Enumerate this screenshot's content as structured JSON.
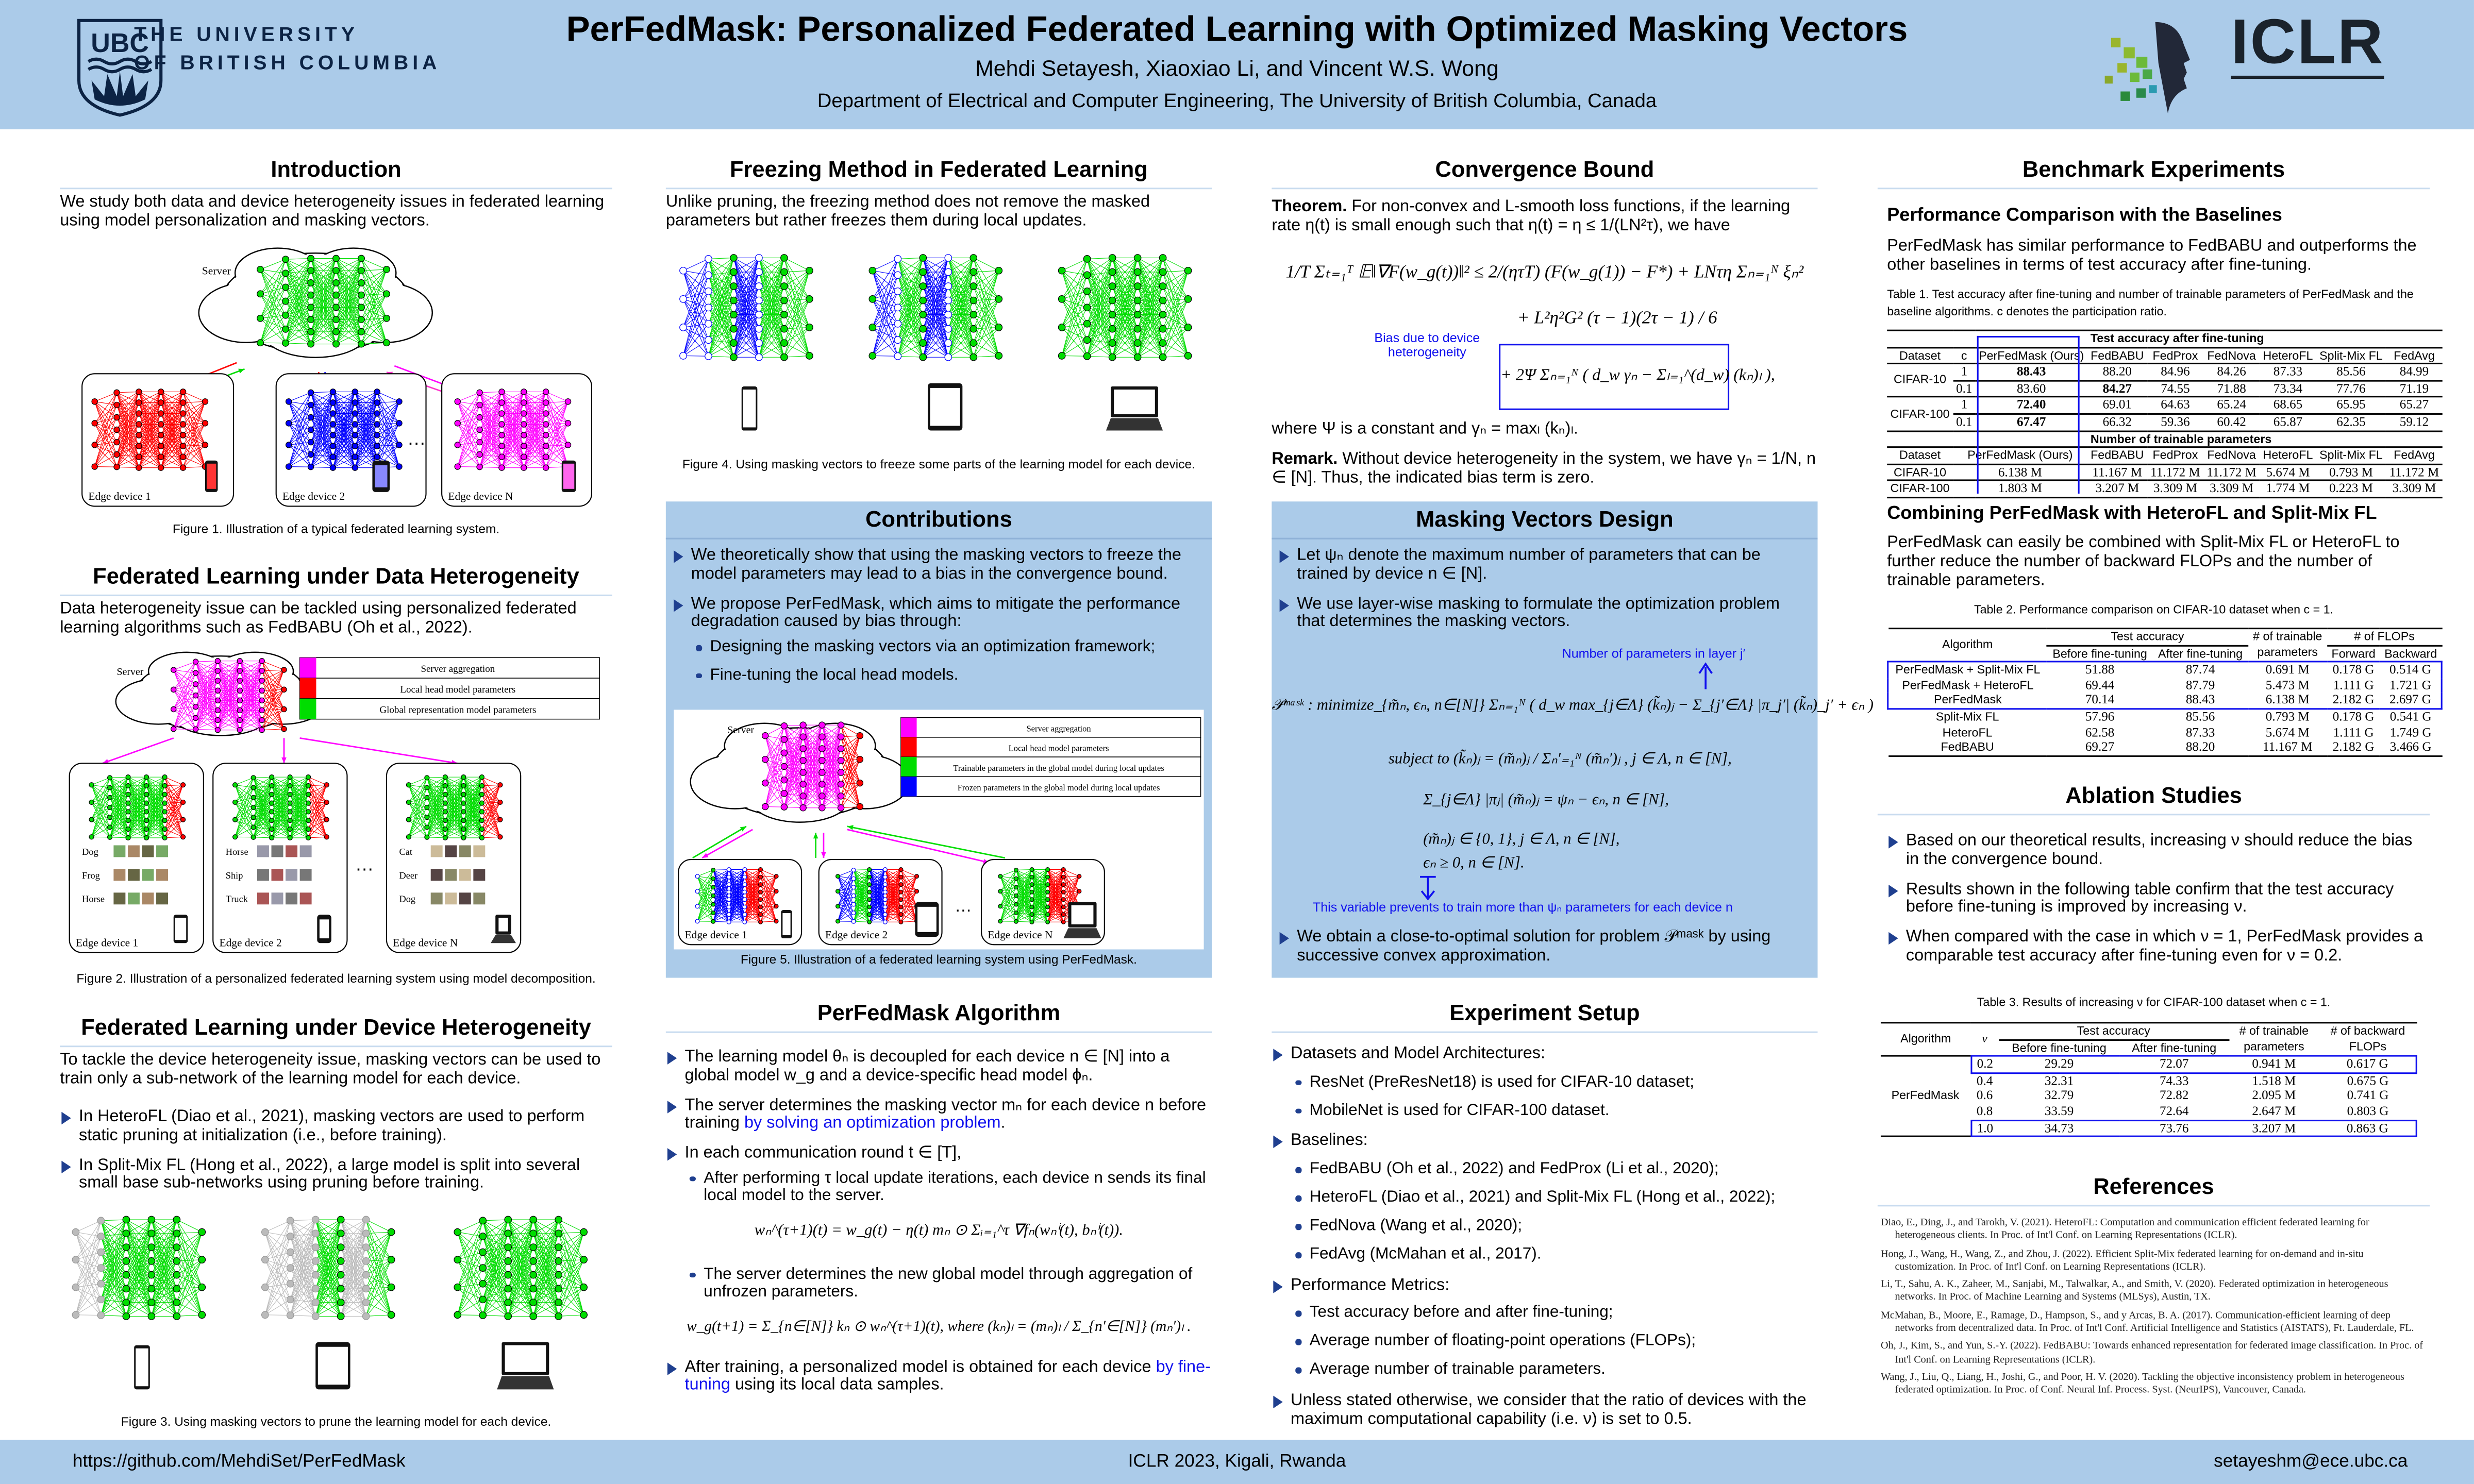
{
  "header": {
    "title": "PerFedMask: Personalized Federated Learning with Optimized Masking Vectors",
    "authors": "Mehdi Setayesh, Xiaoxiao Li, and Vincent W.S. Wong",
    "affiliation": "Department of Electrical and Computer Engineering, The University of British Columbia, Canada",
    "ubc_logo": {
      "crest_text": "UBC",
      "line1": "THE UNIVERSITY",
      "line2": "OF BRITISH COLUMBIA"
    },
    "iclr_logo": {
      "text": "ICLR"
    }
  },
  "footer": {
    "github": "https://github.com/MehdiSet/PerFedMask",
    "venue": "ICLR 2023, Kigali, Rwanda",
    "email": "setayeshm@ece.ubc.ca"
  },
  "colors": {
    "header_bg": "#abcbe9",
    "accent_blue": "#1010ee",
    "server_magenta": "#ff00ff",
    "head_red": "#ff0000",
    "trainable_green": "#00dd00",
    "frozen_blue": "#0000ff"
  },
  "intro": {
    "title": "Introduction",
    "text": "We study both data and device heterogeneity issues in federated learning using model personalization and masking vectors.",
    "fig": {
      "server": "Server",
      "dev1": "Edge device 1",
      "dev2": "Edge device 2",
      "devN": "Edge device N",
      "dots": "…"
    },
    "caption": "Figure 1. Illustration of a typical federated learning system."
  },
  "data_het": {
    "title": "Federated Learning under Data Heterogeneity",
    "text": "Data heterogeneity issue can be tackled using personalized federated learning algorithms such as FedBABU (Oh et al., 2022).",
    "legend": [
      "Server aggregation",
      "Local head model parameters",
      "Global representation model parameters"
    ],
    "fig": {
      "server": "Server",
      "dev1": "Edge device 1",
      "dev2": "Edge device 2",
      "devN": "Edge device N",
      "dots": "…",
      "classes": [
        [
          "Dog",
          "Frog",
          "Horse"
        ],
        [
          "Horse",
          "Ship",
          "Truck"
        ],
        [
          "Cat",
          "Deer",
          "Dog"
        ]
      ]
    },
    "caption": "Figure 2. Illustration of a personalized federated learning system using model decomposition."
  },
  "device_het": {
    "title": "Federated Learning under Device Heterogeneity",
    "text": "To tackle the device heterogeneity issue, masking vectors can be used to train only a sub-network of the learning model for each device.",
    "bullets": [
      "In HeteroFL (Diao et al., 2021), masking vectors are used to perform static pruning at initialization (i.e., before training).",
      "In Split-Mix FL (Hong et al., 2022), a large model is split into several small base sub-networks using pruning before training."
    ],
    "caption": "Figure 3. Using masking vectors to prune the learning model for each device."
  },
  "freezing": {
    "title": "Freezing Method in Federated Learning",
    "text": "Unlike pruning, the freezing method does not remove the masked parameters but rather freezes them during local updates.",
    "caption": "Figure 4. Using masking vectors to freeze some parts of the learning model for each device."
  },
  "contributions": {
    "title": "Contributions",
    "bullets": [
      "We theoretically show that using the masking vectors to freeze the model parameters may lead to a bias in the convergence bound.",
      "We propose PerFedMask, which aims to mitigate the performance degradation caused by bias through:"
    ],
    "sub_bullets": [
      "Designing the masking vectors via an optimization framework;",
      "Fine-tuning the local head models."
    ],
    "legend": [
      "Server aggregation",
      "Local head model parameters",
      "Trainable parameters in the global model during local updates",
      "Frozen parameters in the global model during local updates"
    ],
    "fig": {
      "server": "Server",
      "dev1": "Edge device 1",
      "dev2": "Edge device 2",
      "devN": "Edge device N",
      "dots": "…"
    },
    "caption": "Figure 5. Illustration of a federated learning system using PerFedMask."
  },
  "algorithm": {
    "title": "PerFedMask Algorithm",
    "b1": "The learning model θₙ is decoupled for each device n ∈ [N] into a global model w_g and a device-specific head model ϕₙ.",
    "b2_pre": "The server determines the masking vector mₙ for each device n before training ",
    "b2_link": "by solving an optimization problem",
    "b2_post": ".",
    "b3": "In each communication round t ∈ [T],",
    "s1": "After performing τ local update iterations, each device n sends its final local model to the server.",
    "eq1": "wₙ^(τ+1)(t) = w_g(t) − η(t) mₙ ⊙ Σᵢ₌₁^τ ∇fₙ(wₙⁱ(t), bₙⁱ(t)).",
    "s2": "The server determines the new global model through aggregation of unfrozen parameters.",
    "eq2": "w_g(t+1) = Σ_{n∈[N]} kₙ ⊙ wₙ^(τ+1)(t),  where  (kₙ)ₗ = (mₙ)ₗ / Σ_{n′∈[N]} (mₙ′)ₗ .",
    "b4_pre": "After training, a personalized model is obtained for each device ",
    "b4_link": "by fine-tuning",
    "b4_post": " using its local data samples."
  },
  "convergence": {
    "title": "Convergence Bound",
    "theorem_label": "Theorem.",
    "theorem": " For non-convex and L-smooth loss functions, if the learning rate η(t) is small enough such that η(t) = η ≤ 1/(LN²τ), we have",
    "eq_line1": "1/T Σₜ₌₁ᵀ 𝔼‖∇F(w_g(t))‖² ≤ 2/(ητT) (F(w_g(1)) − F*) + LNτη Σₙ₌₁ᴺ ξₙ²",
    "eq_line2": "+ L²η²G² (τ − 1)(2τ − 1) / 6",
    "eq_line3": "+ 2Ψ Σₙ₌₁ᴺ ( d_w γₙ − Σₗ₌₁^(d_w) (kₙ)ₗ ),",
    "bias_annotation": "Bias due to device heterogeneity",
    "where": "where Ψ is a constant and γₙ = maxₗ (kₙ)ₗ.",
    "remark_label": "Remark.",
    "remark": " Without device heterogeneity in the system, we have γₙ = 1/N, n ∈ [N]. Thus, the indicated bias term is zero."
  },
  "masking": {
    "title": "Masking Vectors Design",
    "bullets": [
      "Let ψₙ denote the maximum number of parameters that can be trained by device n ∈ [N].",
      "We use layer-wise masking to formulate the optimization problem that determines the masking vectors."
    ],
    "annotation_top": "Number of parameters in layer j′",
    "eq_obj": "𝒫ᵐᵃˢᵏ : minimize_{m̃ₙ, ϵₙ, n∈[N]}  Σₙ₌₁ᴺ ( d_w max_{j∈Λ} (k̃ₙ)ⱼ − Σ_{j′∈Λ} |π_j′| (k̃ₙ)_j′ + ϵₙ )",
    "eq_c1": "subject to (k̃ₙ)ⱼ = (m̃ₙ)ⱼ / Σₙ′₌₁ᴺ (m̃ₙ′)ⱼ ,  j ∈ Λ, n ∈ [N],",
    "eq_c2": "Σ_{j∈Λ} |πⱼ| (m̃ₙ)ⱼ = ψₙ − ϵₙ,  n ∈ [N],",
    "eq_c3": "(m̃ₙ)ⱼ ∈ {0, 1},  j ∈ Λ, n ∈ [N],",
    "eq_c4": "ϵₙ ≥ 0,  n ∈ [N].",
    "annotation_bottom": "This variable prevents to train more than ψₙ parameters for each device n",
    "last_bullet": "We obtain a close-to-optimal solution for problem 𝒫ᵐᵃˢᵏ by using successive convex approximation."
  },
  "setup": {
    "title": "Experiment Setup",
    "groups": [
      {
        "label": "Datasets and Model Architectures:",
        "items": [
          "ResNet (PreResNet18) is used for CIFAR-10 dataset;",
          "MobileNet is used for CIFAR-100 dataset."
        ]
      },
      {
        "label": "Baselines:",
        "items": [
          "FedBABU (Oh et al., 2022) and FedProx (Li et al., 2020);",
          "HeteroFL (Diao et al., 2021) and Split-Mix FL (Hong et al., 2022);",
          "FedNova (Wang et al., 2020);",
          "FedAvg (McMahan et al., 2017)."
        ]
      },
      {
        "label": "Performance Metrics:",
        "items": [
          "Test accuracy before and after fine-tuning;",
          "Average number of floating-point operations (FLOPs);",
          "Average number of trainable parameters."
        ]
      }
    ],
    "last": "Unless stated otherwise, we consider that the ratio of devices with the maximum computational capability (i.e. ν) is set to 0.5."
  },
  "benchmark": {
    "title": "Benchmark Experiments",
    "sub1": "Performance Comparison with the Baselines",
    "text1": "PerFedMask has similar performance to FedBABU and outperforms the other baselines in terms of test accuracy after fine-tuning.",
    "t1_caption": "Table 1.  Test accuracy after fine-tuning and number of trainable parameters of PerFedMask and the baseline algorithms. c denotes the participation ratio.",
    "t1": {
      "group_acc": "Test accuracy after fine-tuning",
      "group_params": "Number of trainable parameters",
      "header": [
        "Dataset",
        "c",
        "PerFedMask (Ours)",
        "FedBABU",
        "FedProx",
        "FedNova",
        "HeteroFL",
        "Split-Mix FL",
        "FedAvg"
      ],
      "acc_rows": [
        {
          "dataset": "CIFAR-10",
          "c": "1",
          "values": [
            "88.43",
            "88.20",
            "84.96",
            "84.26",
            "87.33",
            "85.56",
            "84.99"
          ],
          "bold": 0
        },
        {
          "dataset": "",
          "c": "0.1",
          "values": [
            "83.60",
            "84.27",
            "74.55",
            "71.88",
            "73.34",
            "77.76",
            "71.19"
          ],
          "bold": 1
        },
        {
          "dataset": "CIFAR-100",
          "c": "1",
          "values": [
            "72.40",
            "69.01",
            "64.63",
            "65.24",
            "68.65",
            "65.95",
            "65.27"
          ],
          "bold": 0
        },
        {
          "dataset": "",
          "c": "0.1",
          "values": [
            "67.47",
            "66.32",
            "59.36",
            "60.42",
            "65.87",
            "62.35",
            "59.12"
          ],
          "bold": 0
        }
      ],
      "param_header": [
        "Dataset",
        "PerFedMask (Ours)",
        "FedBABU",
        "FedProx",
        "FedNova",
        "HeteroFL",
        "Split-Mix FL",
        "FedAvg"
      ],
      "param_rows": [
        {
          "dataset": "CIFAR-10",
          "values": [
            "6.138 M",
            "11.167 M",
            "11.172 M",
            "11.172 M",
            "5.674 M",
            "0.793 M",
            "11.172 M"
          ]
        },
        {
          "dataset": "CIFAR-100",
          "values": [
            "1.803 M",
            "3.207 M",
            "3.309 M",
            "3.309 M",
            "1.774 M",
            "0.223 M",
            "3.309 M"
          ]
        }
      ]
    },
    "sub2": "Combining PerFedMask with HeteroFL and Split-Mix FL",
    "text2": "PerFedMask can easily be combined with Split-Mix FL or HeteroFL to further reduce the number of backward FLOPs and the number of trainable parameters.",
    "t2_caption": "Table 2.  Performance comparison on CIFAR-10 dataset when c = 1.",
    "t2": {
      "h_algorithm": "Algorithm",
      "h_acc": "Test accuracy",
      "h_before": "Before fine-tuning",
      "h_after": "After fine-tuning",
      "h_params1": "# of trainable",
      "h_params2": "parameters",
      "h_flops": "# of FLOPs",
      "h_fwd": "Forward",
      "h_bwd": "Backward",
      "rows": [
        [
          "PerFedMask + Split-Mix FL",
          "51.88",
          "87.74",
          "0.691 M",
          "0.178 G",
          "0.514 G"
        ],
        [
          "PerFedMask + HeteroFL",
          "69.44",
          "87.79",
          "5.473 M",
          "1.111 G",
          "1.721 G"
        ],
        [
          "PerFedMask",
          "70.14",
          "88.43",
          "6.138 M",
          "2.182 G",
          "2.697 G"
        ],
        [
          "Split-Mix FL",
          "57.96",
          "85.56",
          "0.793 M",
          "0.178 G",
          "0.541 G"
        ],
        [
          "HeteroFL",
          "62.58",
          "87.33",
          "5.674 M",
          "1.111 G",
          "1.749 G"
        ],
        [
          "FedBABU",
          "69.27",
          "88.20",
          "11.167 M",
          "2.182 G",
          "3.466 G"
        ]
      ]
    }
  },
  "ablation": {
    "title": "Ablation Studies",
    "bullets": [
      "Based on our theoretical results, increasing ν should reduce the bias in the convergence bound.",
      "Results shown in the following table confirm that the test accuracy before fine-tuning is improved by increasing ν.",
      "When compared with the case in which ν = 1, PerFedMask provides a comparable test accuracy after fine-tuning even for ν = 0.2."
    ],
    "t3_caption": "Table 3.  Results of increasing ν for CIFAR-100 dataset when c = 1.",
    "t3": {
      "h_algorithm": "Algorithm",
      "h_nu": "ν",
      "h_acc": "Test accuracy",
      "h_before": "Before fine-tuning",
      "h_after": "After fine-tuning",
      "h_params1": "# of trainable",
      "h_params2": "parameters",
      "h_flops1": "# of backward",
      "h_flops2": "FLOPs",
      "algorithm": "PerFedMask",
      "rows": [
        [
          "0.2",
          "29.29",
          "72.07",
          "0.941 M",
          "0.617 G"
        ],
        [
          "0.4",
          "32.31",
          "74.33",
          "1.518 M",
          "0.675 G"
        ],
        [
          "0.6",
          "32.79",
          "72.82",
          "2.095 M",
          "0.741 G"
        ],
        [
          "0.8",
          "33.59",
          "72.64",
          "2.647 M",
          "0.803 G"
        ],
        [
          "1.0",
          "34.73",
          "73.76",
          "3.207 M",
          "0.863 G"
        ]
      ]
    }
  },
  "references": {
    "title": "References",
    "items": [
      "Diao, E., Ding, J., and Tarokh, V. (2021). HeteroFL: Computation and communication efficient federated learning for heterogeneous clients. In Proc. of Int'l Conf. on Learning Representations (ICLR).",
      "Hong, J., Wang, H., Wang, Z., and Zhou, J. (2022). Efficient Split-Mix federated learning for on-demand and in-situ customization. In Proc. of Int'l Conf. on Learning Representations (ICLR).",
      "Li, T., Sahu, A. K., Zaheer, M., Sanjabi, M., Talwalkar, A., and Smith, V. (2020). Federated optimization in heterogeneous networks. In Proc. of Machine Learning and Systems (MLSys), Austin, TX.",
      "McMahan, B., Moore, E., Ramage, D., Hampson, S., and y Arcas, B. A. (2017). Communication-efficient learning of deep networks from decentralized data. In Proc. of Int'l Conf. Artificial Intelligence and Statistics (AISTATS), Ft. Lauderdale, FL.",
      "Oh, J., Kim, S., and Yun, S.-Y. (2022). FedBABU: Towards enhanced representation for federated image classification. In Proc. of Int'l Conf. on Learning Representations (ICLR).",
      "Wang, J., Liu, Q., Liang, H., Joshi, G., and Poor, H. V. (2020). Tackling the objective inconsistency problem in heterogeneous federated optimization. In Proc. of Conf. Neural Inf. Process. Syst. (NeurIPS), Vancouver, Canada."
    ]
  }
}
